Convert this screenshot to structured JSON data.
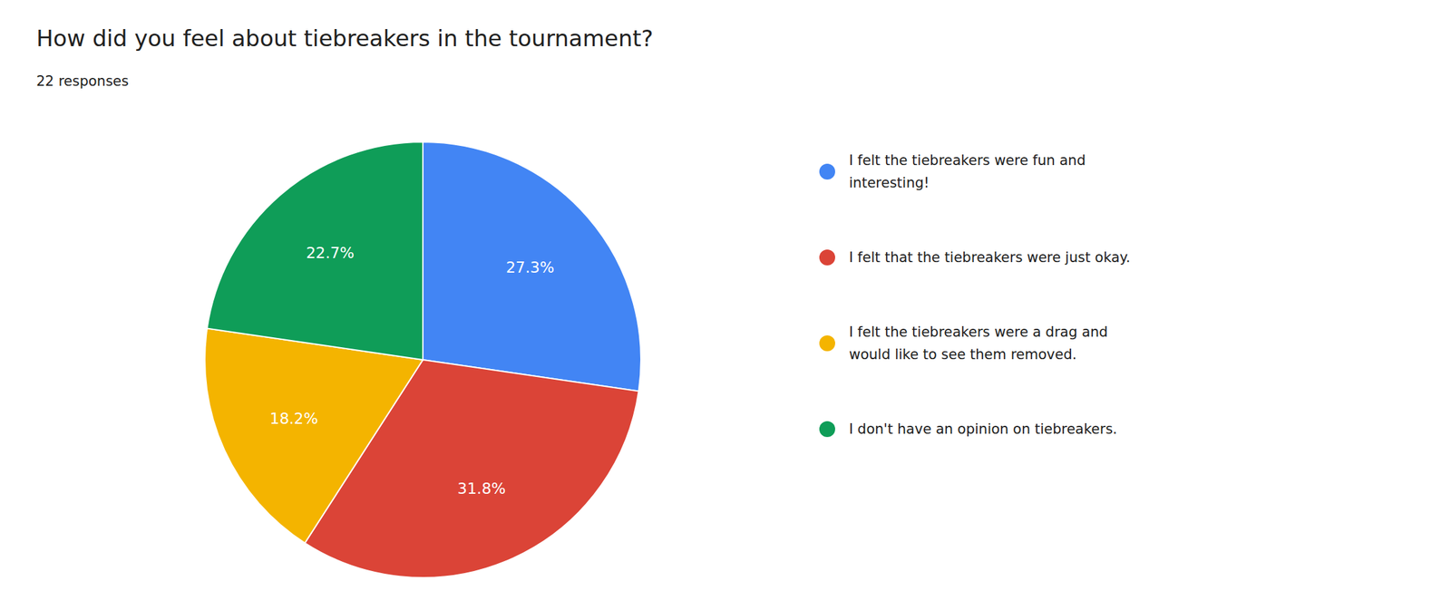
{
  "chart_data": {
    "type": "pie",
    "title": "How did you feel about tiebreakers in the tournament?",
    "subtitle": "22 responses",
    "categories": [
      "I felt the tiebreakers were fun and\ninteresting!",
      "I felt that the tiebreakers were just okay.",
      "I felt the tiebreakers were a drag and\nwould like to see them removed.",
      "I don't have an opinion on tiebreakers."
    ],
    "values": [
      27.3,
      31.8,
      18.2,
      22.7
    ],
    "value_labels": [
      "27.3%",
      "31.8%",
      "18.2%",
      "22.7%"
    ],
    "colors": [
      "#4285F4",
      "#DB4437",
      "#F4B400",
      "#0F9D58"
    ],
    "data_labels": true,
    "legend": "right"
  }
}
